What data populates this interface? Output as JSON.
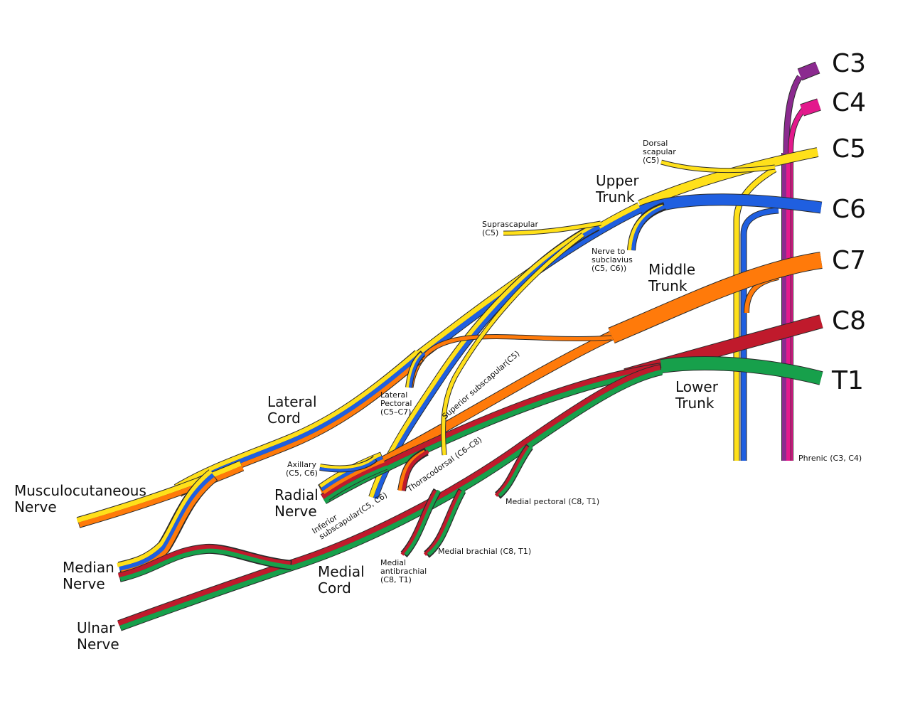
{
  "roots": [
    "C3",
    "C4",
    "C5",
    "C6",
    "C7",
    "C8",
    "T1"
  ],
  "trunks": [
    [
      "Upper",
      "Trunk"
    ],
    [
      "Middle",
      "Trunk"
    ],
    [
      "Lower",
      "Trunk"
    ]
  ],
  "cords": [
    [
      "Lateral",
      "Cord"
    ],
    [
      "Medial",
      "Cord"
    ]
  ],
  "terminal_nerves": [
    [
      "Musculocutaneous",
      "Nerve"
    ],
    [
      "Median",
      "Nerve"
    ],
    [
      "Radial",
      "Nerve"
    ],
    [
      "Ulnar",
      "Nerve"
    ]
  ],
  "branches": [
    [
      "Dorsal",
      "scapular",
      "(C5)"
    ],
    [
      "Suprascapular",
      "(C5)"
    ],
    [
      "Nerve to",
      "subclavius",
      "(C5, C6))"
    ],
    [
      "Lateral",
      "Pectoral",
      "(C5–C7)"
    ],
    [
      "Superior subscapular(C5)"
    ],
    [
      "Axillary",
      "(C5, C6)"
    ],
    [
      "Inferior",
      "subscapular(C5, C6)"
    ],
    [
      "Thoracodorsal (C6–C8)"
    ],
    [
      "Medial pectoral (C8, T1)"
    ],
    [
      "Medial brachial (C8, T1)"
    ],
    [
      "Medial",
      "antibrachial",
      "(C8, T1)"
    ],
    [
      "Phrenic (C3, C4)"
    ]
  ]
}
